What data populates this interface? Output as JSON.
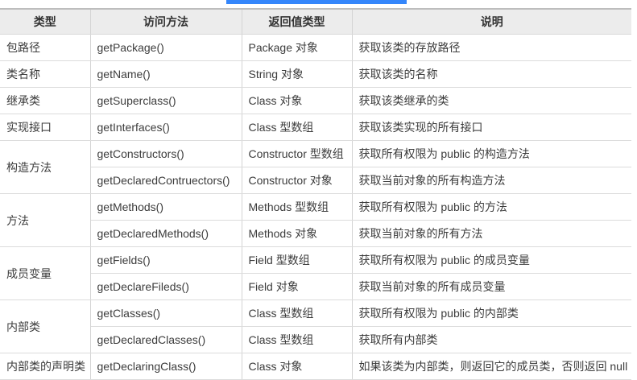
{
  "colors": {
    "accent_blue": "#3486fb",
    "header_bg": "#ececec",
    "border_gray": "#d4d4d4"
  },
  "table": {
    "headers": {
      "type": "类型",
      "method": "访问方法",
      "return_type": "返回值类型",
      "description": "说明"
    },
    "rows": [
      {
        "type": "包路径",
        "method": "getPackage()",
        "ret": "Package 对象",
        "desc": "获取该类的存放路径"
      },
      {
        "type": "类名称",
        "method": "getName()",
        "ret": "String 对象",
        "desc": "获取该类的名称"
      },
      {
        "type": "继承类",
        "method": "getSuperclass()",
        "ret": "Class 对象",
        "desc": "获取该类继承的类"
      },
      {
        "type": "实现接口",
        "method": "getInterfaces()",
        "ret": "Class 型数组",
        "desc": "获取该类实现的所有接口"
      },
      {
        "type": "构造方法",
        "method": "getConstructors()",
        "ret": "Constructor 型数组",
        "desc": "获取所有权限为 public 的构造方法"
      },
      {
        "method": "getDeclaredContruectors()",
        "ret": "Constructor 对象",
        "desc": "获取当前对象的所有构造方法"
      },
      {
        "type": "方法",
        "method": "getMethods()",
        "ret": "Methods 型数组",
        "desc": "获取所有权限为 public 的方法"
      },
      {
        "method": "getDeclaredMethods()",
        "ret": "Methods 对象",
        "desc": "获取当前对象的所有方法"
      },
      {
        "type": "成员变量",
        "method": "getFields()",
        "ret": "Field 型数组",
        "desc": "获取所有权限为 public 的成员变量"
      },
      {
        "method": "getDeclareFileds()",
        "ret": "Field 对象",
        "desc": "获取当前对象的所有成员变量"
      },
      {
        "type": "内部类",
        "method": "getClasses()",
        "ret": "Class 型数组",
        "desc": "获取所有权限为 public 的内部类"
      },
      {
        "method": "getDeclaredClasses()",
        "ret": "Class 型数组",
        "desc": "获取所有内部类"
      },
      {
        "type": "内部类的声明类",
        "method": "getDeclaringClass()",
        "ret": "Class 对象",
        "desc": "如果该类为内部类，则返回它的成员类，否则返回 null"
      }
    ]
  }
}
